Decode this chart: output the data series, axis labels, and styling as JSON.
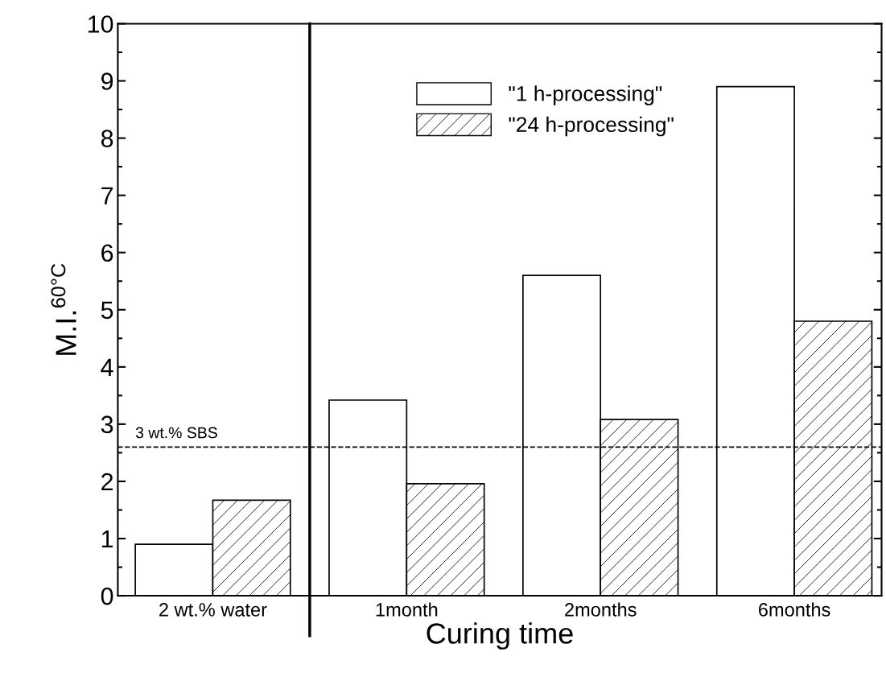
{
  "chart_data": {
    "type": "bar",
    "xlabel": "Curing time",
    "ylabel": "M.I.$^{60°C}$",
    "categories": [
      "2 wt.% water",
      "1month",
      "2months",
      "6months"
    ],
    "series": [
      {
        "name": "\"1 h-processing\"",
        "color": "#ffffff",
        "values": [
          0.9,
          3.42,
          5.6,
          8.9
        ]
      },
      {
        "name": "\"24 h-processing\"",
        "color": "#000000",
        "values": [
          1.67,
          1.96,
          3.08,
          4.8
        ]
      }
    ],
    "ylim": [
      0,
      10
    ],
    "yticks": [
      0,
      1,
      2,
      3,
      4,
      5,
      6,
      7,
      8,
      9,
      10
    ],
    "ref_lines": [
      {
        "axis": "y",
        "value": 2.6,
        "label": "3 wt.% SBS",
        "color": "#000000",
        "line_style": "dashed"
      }
    ],
    "legend": "top",
    "grid": false
  }
}
